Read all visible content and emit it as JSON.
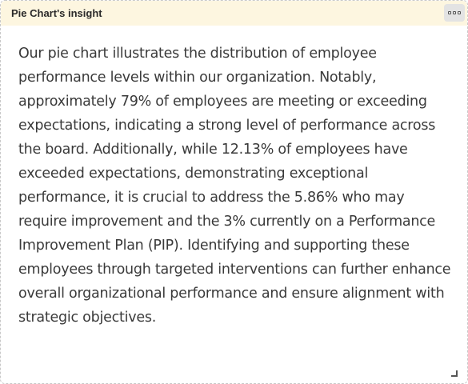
{
  "panel": {
    "title": "Pie Chart's insight",
    "menu_icon": "more-options-icon",
    "body_text": "Our pie chart illustrates the distribution of employee performance levels within our organization. Notably, approximately 79% of employees are meeting or exceeding expectations, indicating a strong level of performance across the board. Additionally, while 12.13% of employees have exceeded expectations, demonstrating exceptional performance, it is crucial to address the 5.86% who may require improvement and the 3% currently on a Performance Improvement Plan (PIP). Identifying and supporting these employees through targeted interventions can further enhance overall organizational performance and ensure alignment with strategic objectives.",
    "resize_icon": "resize-handle-icon"
  },
  "colors": {
    "header_background": "#fdf6e0",
    "menu_button_background": "#e3e3e3",
    "body_text": "#3a3a3a",
    "border": "#c9c9c9"
  }
}
